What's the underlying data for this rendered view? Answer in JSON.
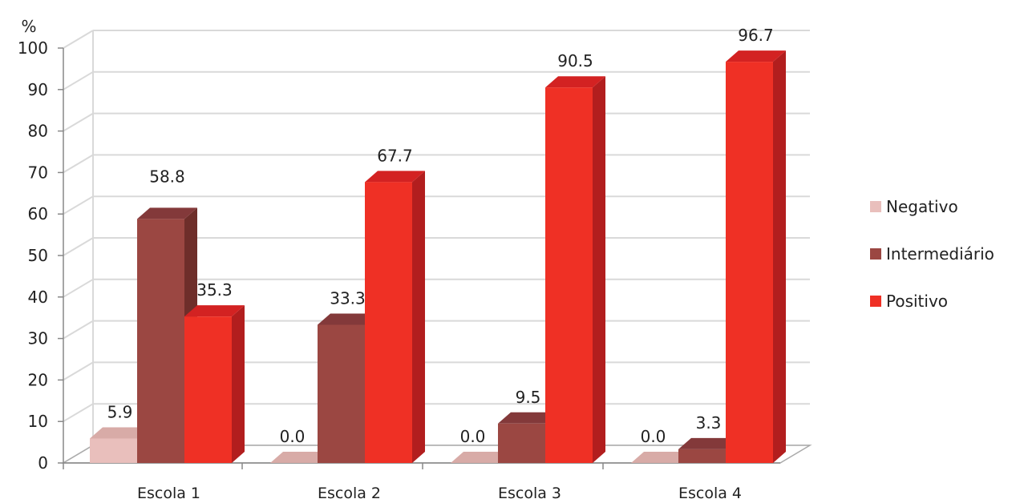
{
  "chart_data": {
    "type": "bar",
    "ylabel": "%",
    "xlabel": "",
    "ylim": [
      0,
      100
    ],
    "yticks": [
      0,
      10,
      20,
      30,
      40,
      50,
      60,
      70,
      80,
      90,
      100
    ],
    "categories": [
      "Escola 1",
      "Escola 2",
      "Escola 3",
      "Escola 4"
    ],
    "series": [
      {
        "name": "Negativo",
        "values": [
          5.9,
          0.0,
          0.0,
          0.0
        ],
        "value_labels": [
          "5.9",
          "0.0",
          "0.0",
          "0.0"
        ]
      },
      {
        "name": "Intermediário",
        "values": [
          58.8,
          33.3,
          9.5,
          3.3
        ],
        "value_labels": [
          "58.8",
          "33.3",
          "9.5",
          "3.3"
        ]
      },
      {
        "name": "Positivo",
        "values": [
          35.3,
          67.7,
          90.5,
          96.7
        ],
        "value_labels": [
          "35.3",
          "67.7",
          "90.5",
          "96.7"
        ]
      }
    ],
    "legend_position": "right",
    "grid": true,
    "style": "3d-clustered-column"
  },
  "colors": {
    "Negativo": {
      "front": "#E9BFBC",
      "side": "#B89592",
      "top": "#D8ABA7"
    },
    "Intermediário": {
      "front": "#9B4742",
      "side": "#6E2E2A",
      "top": "#83393A"
    },
    "Positivo": {
      "front": "#EF3025",
      "side": "#B21E1E",
      "top": "#D32222"
    },
    "grid": "#D9D9D9",
    "text": "#222222"
  }
}
